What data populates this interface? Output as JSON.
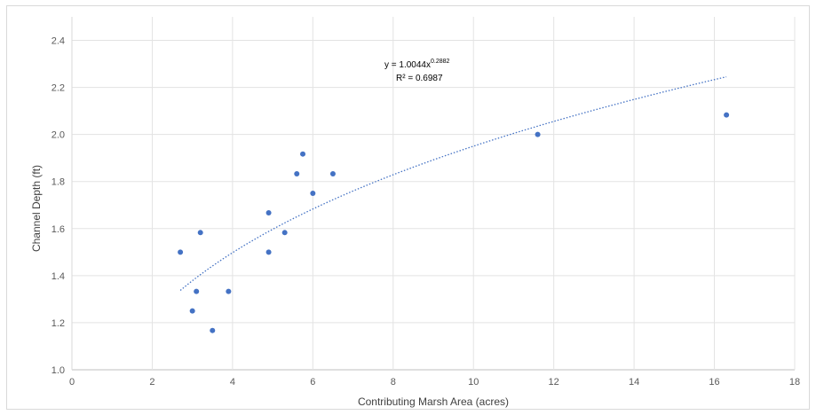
{
  "chart_data": {
    "type": "scatter",
    "title": "",
    "xlabel": "Contributing Marsh Area (acres)",
    "ylabel": "Channel Depth (ft)",
    "xlim": [
      0,
      18
    ],
    "ylim": [
      1.0,
      2.5
    ],
    "x_ticks": [
      0,
      2,
      4,
      6,
      8,
      10,
      12,
      14,
      16,
      18
    ],
    "y_ticks": [
      1.0,
      1.2,
      1.4,
      1.6,
      1.8,
      2.0,
      2.2,
      2.4
    ],
    "x_tick_labels": [
      "0",
      "2",
      "4",
      "6",
      "8",
      "10",
      "12",
      "14",
      "16",
      "18"
    ],
    "y_tick_labels": [
      "1.0",
      "1.2",
      "1.4",
      "1.6",
      "1.8",
      "2.0",
      "2.2",
      "2.4"
    ],
    "grid": true,
    "legend": "none",
    "marker_color": "#4472c4",
    "trendline_color": "#4472c4",
    "points": [
      {
        "x": 2.7,
        "y": 1.5
      },
      {
        "x": 3.0,
        "y": 1.25
      },
      {
        "x": 3.1,
        "y": 1.333
      },
      {
        "x": 3.2,
        "y": 1.583
      },
      {
        "x": 3.5,
        "y": 1.167
      },
      {
        "x": 3.9,
        "y": 1.333
      },
      {
        "x": 4.9,
        "y": 1.667
      },
      {
        "x": 4.9,
        "y": 1.5
      },
      {
        "x": 5.3,
        "y": 1.583
      },
      {
        "x": 5.6,
        "y": 1.833
      },
      {
        "x": 5.75,
        "y": 1.917
      },
      {
        "x": 6.0,
        "y": 1.75
      },
      {
        "x": 6.5,
        "y": 1.833
      },
      {
        "x": 11.6,
        "y": 2.0
      },
      {
        "x": 16.3,
        "y": 2.083
      }
    ],
    "trendline": {
      "type": "power",
      "a": 1.0044,
      "b": 0.2882,
      "x_range": [
        2.7,
        16.3
      ],
      "style": "dotted"
    },
    "annotation": {
      "equation_prefix": "y = 1.0044x",
      "equation_exponent": "0.2882",
      "r_squared": "R² = 0.6987"
    }
  }
}
